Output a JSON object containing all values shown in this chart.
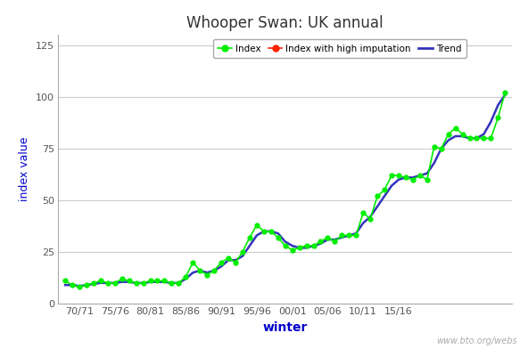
{
  "title": "Whooper Swan: UK annual",
  "xlabel": "winter",
  "ylabel": "index value",
  "watermark": "www.bto.org/webs",
  "x_tick_labels": [
    "70/71",
    "75/76",
    "80/81",
    "85/86",
    "90/91",
    "95/96",
    "00/01",
    "05/06",
    "10/11",
    "15/16"
  ],
  "ylim": [
    0,
    130
  ],
  "yticks": [
    0,
    25,
    50,
    75,
    100,
    125
  ],
  "background_color": "#ffffff",
  "plot_bg_color": "#ffffff",
  "title_color": "#333333",
  "axis_label_color": "#0000cc",
  "tick_label_color": "#555555",
  "grid_color": "#cccccc",
  "index_color": "#00ee00",
  "trend_color": "#3333bb",
  "high_imputation_color": "#ff2200",
  "index_values": [
    11,
    9,
    8,
    9,
    10,
    11,
    10,
    10,
    12,
    11,
    10,
    10,
    11,
    11,
    11,
    10,
    10,
    13,
    20,
    16,
    14,
    16,
    20,
    22,
    20,
    25,
    32,
    38,
    35,
    35,
    32,
    28,
    26,
    27,
    28,
    28,
    30,
    32,
    30,
    33,
    33,
    33,
    44,
    41,
    52,
    55,
    62,
    62,
    61,
    60,
    62,
    60,
    76,
    75,
    82,
    85,
    82,
    80,
    80,
    80,
    80,
    90,
    102
  ],
  "trend_values": [
    9,
    9,
    8.5,
    9,
    9.5,
    10,
    10,
    10,
    10.5,
    10.5,
    10,
    10,
    10.5,
    10.5,
    10.5,
    10,
    10,
    12,
    15,
    16,
    15,
    16,
    18,
    21,
    21,
    23,
    28,
    33,
    35,
    35,
    34,
    30,
    28,
    27,
    27,
    28,
    29,
    31,
    31,
    32,
    33,
    34,
    39,
    42,
    47,
    52,
    57,
    60,
    61,
    61,
    62,
    63,
    68,
    75,
    79,
    81,
    81,
    80,
    80,
    82,
    88,
    96,
    101
  ],
  "high_imputation_indices": [],
  "tick_positions": [
    2,
    7,
    12,
    17,
    22,
    27,
    32,
    37,
    42,
    47
  ],
  "n_points": 63
}
